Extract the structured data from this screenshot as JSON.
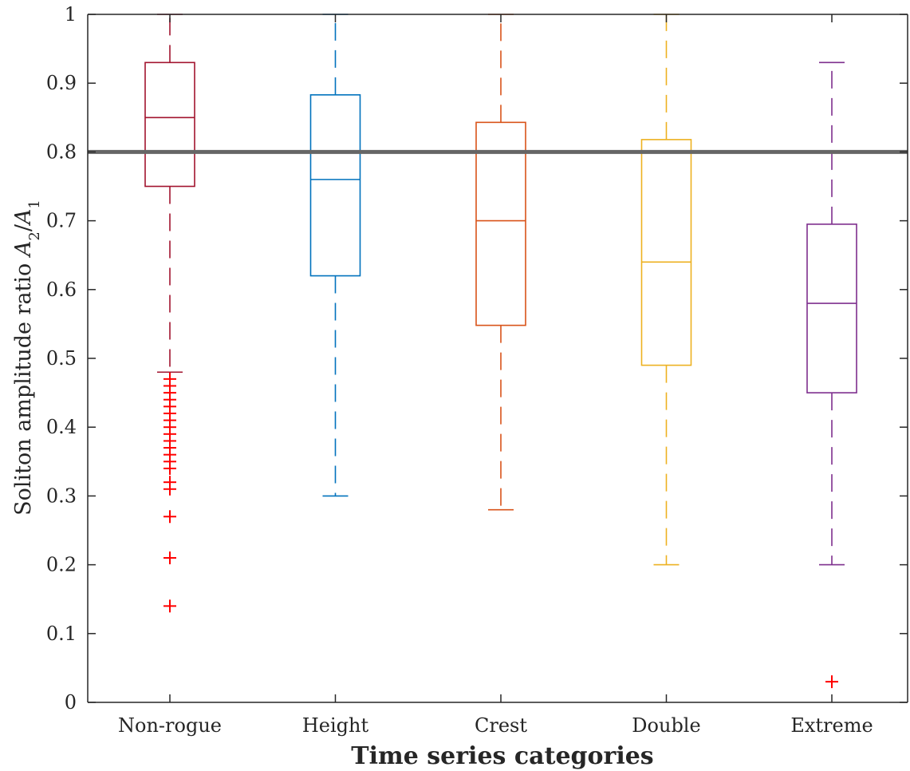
{
  "chart_data": {
    "type": "box",
    "xlabel": "Time series categories",
    "ylabel": "Soliton amplitude ratio A2/A1",
    "ylabel_parts": {
      "prefix": "Soliton amplitude ratio ",
      "a": "A",
      "sub2": "2",
      "slash": "/",
      "sub1": "1"
    },
    "ylim": [
      0,
      1
    ],
    "yticks": [
      0,
      0.1,
      0.2,
      0.3,
      0.4,
      0.5,
      0.6,
      0.7,
      0.8,
      0.9,
      1
    ],
    "ytick_labels": [
      "0",
      "0.1",
      "0.2",
      "0.3",
      "0.4",
      "0.5",
      "0.6",
      "0.7",
      "0.8",
      "0.9",
      "1"
    ],
    "reference_line": {
      "y": 0.8,
      "color": "#666666"
    },
    "outlier_color": "#ff0000",
    "grid": false,
    "categories": [
      "Non-rogue",
      "Height",
      "Crest",
      "Double",
      "Extreme"
    ],
    "boxes": [
      {
        "name": "Non-rogue",
        "color": "#a2142f",
        "whisker_low": 0.48,
        "q1": 0.75,
        "median": 0.85,
        "q3": 0.93,
        "whisker_high": 1.0,
        "outliers": [
          0.47,
          0.46,
          0.45,
          0.44,
          0.43,
          0.42,
          0.41,
          0.4,
          0.39,
          0.38,
          0.37,
          0.36,
          0.35,
          0.34,
          0.32,
          0.31,
          0.27,
          0.21,
          0.14
        ]
      },
      {
        "name": "Height",
        "color": "#0072bd",
        "whisker_low": 0.3,
        "q1": 0.62,
        "median": 0.76,
        "q3": 0.883,
        "whisker_high": 1.0,
        "outliers": []
      },
      {
        "name": "Crest",
        "color": "#d95319",
        "whisker_low": 0.28,
        "q1": 0.548,
        "median": 0.7,
        "q3": 0.843,
        "whisker_high": 1.0,
        "outliers": []
      },
      {
        "name": "Double",
        "color": "#edb120",
        "whisker_low": 0.2,
        "q1": 0.49,
        "median": 0.64,
        "q3": 0.818,
        "whisker_high": 1.0,
        "outliers": []
      },
      {
        "name": "Extreme",
        "color": "#7e2f8e",
        "whisker_low": 0.2,
        "q1": 0.45,
        "median": 0.58,
        "q3": 0.695,
        "whisker_high": 0.93,
        "outliers": [
          0.03
        ]
      }
    ]
  }
}
